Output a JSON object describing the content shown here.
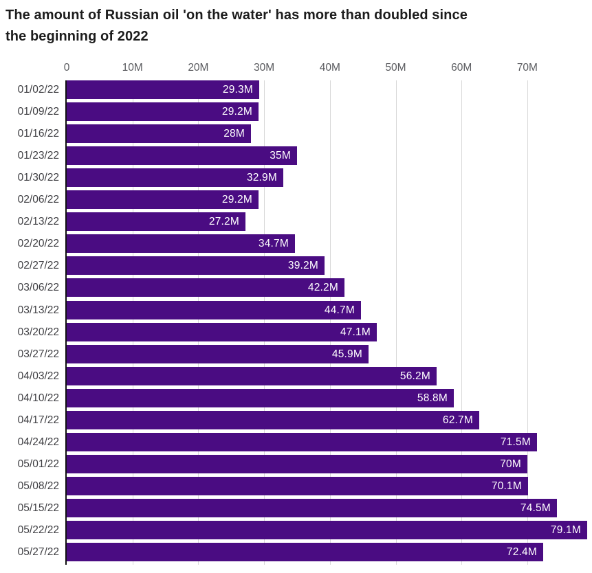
{
  "title_lines": {
    "line1": "The amount of Russian oil 'on the water' has more than doubled since",
    "line2": "the beginning of 2022"
  },
  "chart_data": {
    "type": "bar",
    "orientation": "horizontal",
    "title": "The amount of Russian oil 'on the water' has more than doubled since the beginning of 2022",
    "xlabel": "",
    "ylabel": "",
    "categories": [
      "01/02/22",
      "01/09/22",
      "01/16/22",
      "01/23/22",
      "01/30/22",
      "02/06/22",
      "02/13/22",
      "02/20/22",
      "02/27/22",
      "03/06/22",
      "03/13/22",
      "03/20/22",
      "03/27/22",
      "04/03/22",
      "04/10/22",
      "04/17/22",
      "04/24/22",
      "05/01/22",
      "05/08/22",
      "05/15/22",
      "05/22/22",
      "05/27/22"
    ],
    "values": [
      29.3,
      29.2,
      28,
      35,
      32.9,
      29.2,
      27.2,
      34.7,
      39.2,
      42.2,
      44.7,
      47.1,
      45.9,
      56.2,
      58.8,
      62.7,
      71.5,
      70,
      70.1,
      74.5,
      79.1,
      72.4
    ],
    "value_labels": [
      "29.3M",
      "29.2M",
      "28M",
      "35M",
      "32.9M",
      "29.2M",
      "27.2M",
      "34.7M",
      "39.2M",
      "42.2M",
      "44.7M",
      "47.1M",
      "45.9M",
      "56.2M",
      "58.8M",
      "62.7M",
      "71.5M",
      "70M",
      "70.1M",
      "74.5M",
      "79.1M",
      "72.4M"
    ],
    "value_unit": "M",
    "x_ticks": [
      {
        "value": 0,
        "label": "0"
      },
      {
        "value": 10,
        "label": "10M"
      },
      {
        "value": 20,
        "label": "20M"
      },
      {
        "value": 30,
        "label": "30M"
      },
      {
        "value": 40,
        "label": "40M"
      },
      {
        "value": 50,
        "label": "50M"
      },
      {
        "value": 60,
        "label": "60M"
      },
      {
        "value": 70,
        "label": "70M"
      }
    ],
    "xlim": [
      0,
      80
    ],
    "grid": true,
    "legend": false,
    "colors": {
      "bar": "#4A0C82",
      "bar_value_text": "#ffffff",
      "gridline": "#D8D8D8",
      "axis_line": "#111111",
      "tick_label": "#5A5B5F",
      "category_label": "#3E3E42",
      "title_text": "#1C1C1C",
      "background": "#FFFFFF"
    }
  }
}
